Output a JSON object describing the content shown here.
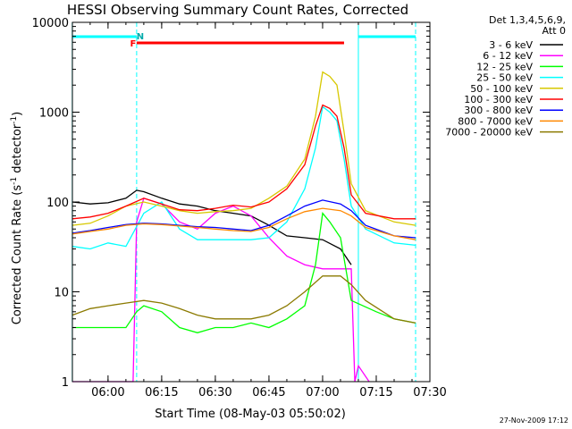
{
  "chart_data": {
    "type": "line",
    "title": "HESSI Observing Summary Count Rates, Corrected",
    "xlabel": "Start Time (08-May-03 05:50:02)",
    "ylabel_main": "Corrected Count Rate (s",
    "ylabel_sup1": "-1",
    "ylabel_mid": " detector",
    "ylabel_sup2": "-1",
    "ylabel_end": ")",
    "y_scale": "log",
    "ylim": [
      1,
      10000
    ],
    "xlim": [
      "05:50:02",
      "07:30:00"
    ],
    "x_ticks": [
      "06:00",
      "06:15",
      "06:30",
      "06:45",
      "07:00",
      "07:15",
      "07:30"
    ],
    "y_ticks": [
      {
        "value": 1,
        "label": "1"
      },
      {
        "value": 10,
        "label": "10"
      },
      {
        "value": 100,
        "label": "100"
      },
      {
        "value": 1000,
        "label": "1000"
      },
      {
        "value": 10000,
        "label": "10000"
      }
    ],
    "legend_header": [
      "Det 1,3,4,5,6,9,",
      "Att 0"
    ],
    "legend_position": "right",
    "series": [
      {
        "name": "3 - 6 keV",
        "color": "#000000",
        "x": [
          "05:50",
          "05:55",
          "06:00",
          "06:05",
          "06:08",
          "06:10",
          "06:15",
          "06:20",
          "06:25",
          "06:30",
          "06:35",
          "06:40",
          "06:45",
          "06:50",
          "06:55",
          "07:00",
          "07:05",
          "07:08"
        ],
        "y": [
          100,
          95,
          98,
          110,
          135,
          130,
          110,
          95,
          90,
          80,
          75,
          70,
          55,
          42,
          40,
          38,
          30,
          20
        ]
      },
      {
        "name": "6 - 12 keV",
        "color": "#ff00ff",
        "x": [
          "05:50",
          "05:52",
          "06:07",
          "06:08",
          "06:10",
          "06:15",
          "06:20",
          "06:25",
          "06:30",
          "06:35",
          "06:40",
          "06:45",
          "06:50",
          "06:55",
          "07:00",
          "07:05",
          "07:08",
          "07:09",
          "07:10",
          "07:13"
        ],
        "y": [
          1,
          1,
          1,
          60,
          110,
          95,
          60,
          50,
          75,
          90,
          70,
          40,
          25,
          20,
          18,
          18,
          18,
          1,
          1.5,
          1
        ]
      },
      {
        "name": "12 - 25 keV",
        "color": "#00ff00",
        "x": [
          "05:50",
          "05:55",
          "06:00",
          "06:05",
          "06:08",
          "06:10",
          "06:15",
          "06:20",
          "06:25",
          "06:30",
          "06:35",
          "06:40",
          "06:45",
          "06:50",
          "06:55",
          "06:58",
          "07:00",
          "07:02",
          "07:05",
          "07:08",
          "07:15",
          "07:20",
          "07:26"
        ],
        "y": [
          4,
          4,
          4,
          4,
          6,
          7,
          6,
          4,
          3.5,
          4,
          4,
          4.5,
          4,
          5,
          7,
          20,
          75,
          60,
          40,
          8,
          6,
          5,
          4.5
        ]
      },
      {
        "name": "25 - 50 keV",
        "color": "#00ffff",
        "x": [
          "05:50",
          "05:55",
          "06:00",
          "06:05",
          "06:10",
          "06:15",
          "06:20",
          "06:25",
          "06:30",
          "06:35",
          "06:40",
          "06:45",
          "06:50",
          "06:55",
          "06:58",
          "07:00",
          "07:02",
          "07:04",
          "07:06",
          "07:08",
          "07:12",
          "07:20",
          "07:26"
        ],
        "y": [
          32,
          30,
          35,
          32,
          75,
          100,
          50,
          38,
          38,
          38,
          38,
          40,
          60,
          140,
          400,
          1150,
          1000,
          800,
          300,
          90,
          50,
          35,
          33
        ]
      },
      {
        "name": "50 - 100 keV",
        "color": "#ffff00",
        "stroke": "#d7c800",
        "x": [
          "05:50",
          "05:55",
          "06:00",
          "06:05",
          "06:10",
          "06:15",
          "06:20",
          "06:25",
          "06:30",
          "06:35",
          "06:40",
          "06:45",
          "06:50",
          "06:55",
          "06:58",
          "07:00",
          "07:02",
          "07:04",
          "07:06",
          "07:08",
          "07:12",
          "07:20",
          "07:26"
        ],
        "y": [
          55,
          58,
          70,
          90,
          100,
          90,
          80,
          75,
          78,
          80,
          85,
          110,
          150,
          300,
          900,
          2800,
          2500,
          2000,
          600,
          160,
          80,
          60,
          55
        ]
      },
      {
        "name": "100 - 300 keV",
        "color": "#ff0000",
        "x": [
          "05:50",
          "05:55",
          "06:00",
          "06:05",
          "06:10",
          "06:15",
          "06:20",
          "06:25",
          "06:30",
          "06:35",
          "06:40",
          "06:45",
          "06:50",
          "06:55",
          "06:58",
          "07:00",
          "07:02",
          "07:04",
          "07:06",
          "07:08",
          "07:12",
          "07:20",
          "07:26"
        ],
        "y": [
          65,
          68,
          75,
          90,
          110,
          95,
          82,
          80,
          85,
          92,
          88,
          100,
          140,
          260,
          700,
          1200,
          1100,
          900,
          400,
          120,
          75,
          65,
          65
        ]
      },
      {
        "name": "300 - 800 keV",
        "color": "#0000ff",
        "x": [
          "05:50",
          "05:55",
          "06:00",
          "06:05",
          "06:10",
          "06:15",
          "06:20",
          "06:25",
          "06:30",
          "06:35",
          "06:40",
          "06:45",
          "06:50",
          "06:55",
          "07:00",
          "07:05",
          "07:08",
          "07:12",
          "07:20",
          "07:26"
        ],
        "y": [
          45,
          48,
          52,
          56,
          58,
          57,
          55,
          53,
          52,
          50,
          48,
          55,
          70,
          90,
          105,
          95,
          80,
          55,
          42,
          40
        ]
      },
      {
        "name": "800 - 7000 keV",
        "color": "#ff8800",
        "x": [
          "05:50",
          "05:55",
          "06:00",
          "06:05",
          "06:10",
          "06:15",
          "06:20",
          "06:25",
          "06:30",
          "06:35",
          "06:40",
          "06:45",
          "06:50",
          "06:55",
          "07:00",
          "07:05",
          "07:08",
          "07:12",
          "07:20",
          "07:26"
        ],
        "y": [
          44,
          47,
          50,
          55,
          57,
          56,
          54,
          52,
          50,
          48,
          47,
          52,
          65,
          78,
          85,
          80,
          70,
          52,
          42,
          38
        ]
      },
      {
        "name": "7000 - 20000 keV",
        "color": "#8b7a00",
        "x": [
          "05:50",
          "05:55",
          "06:00",
          "06:05",
          "06:10",
          "06:15",
          "06:20",
          "06:25",
          "06:30",
          "06:35",
          "06:40",
          "06:45",
          "06:50",
          "06:55",
          "07:00",
          "07:05",
          "07:08",
          "07:12",
          "07:20",
          "07:26"
        ],
        "y": [
          5.5,
          6.5,
          7,
          7.5,
          8,
          7.5,
          6.5,
          5.5,
          5,
          5,
          5,
          5.5,
          7,
          10,
          15,
          15,
          12,
          8,
          5,
          4.5
        ]
      }
    ],
    "flag_lines": {
      "top_cyan": {
        "color": "#00ffff",
        "segments": [
          [
            "05:50",
            "06:08"
          ],
          [
            "07:10",
            "07:26"
          ]
        ]
      },
      "flare_red": {
        "color": "#ff0000",
        "segments": [
          [
            "06:08",
            "07:06"
          ]
        ]
      },
      "markers": [
        {
          "label": "F",
          "x": "06:07",
          "color": "#ff0000"
        },
        {
          "label": "N",
          "x": "06:09",
          "color": "#00aaaa"
        }
      ],
      "vertical_cyan": [
        "05:50",
        "06:08",
        "07:10",
        "07:26"
      ]
    },
    "footer_date": "27-Nov-2009 17:12"
  }
}
